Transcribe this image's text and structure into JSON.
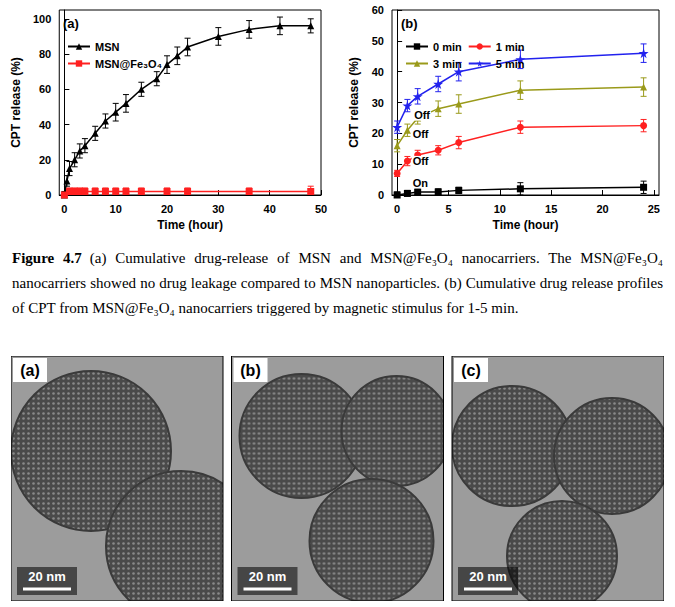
{
  "chart_data": [
    {
      "type": "line",
      "panel": "(a)",
      "x_label": "Time (hour)",
      "y_label": "CPT release (%)",
      "xlim": [
        -1,
        50
      ],
      "xticks": [
        0,
        10,
        20,
        30,
        40,
        50
      ],
      "ylim": [
        0,
        105
      ],
      "yticks": [
        0,
        20,
        40,
        60,
        80,
        100
      ],
      "legend": "top-left",
      "series": [
        {
          "name": "MSN",
          "color": "#000000",
          "marker": "triangle",
          "x": [
            0,
            0.5,
            1,
            2,
            3,
            4,
            6,
            8,
            10,
            12,
            15,
            18,
            20,
            22,
            24,
            30,
            36,
            42,
            48
          ],
          "values": [
            0,
            8,
            15,
            20,
            25,
            28,
            35,
            42,
            47,
            52,
            60,
            66,
            74,
            79,
            84,
            90,
            94,
            96,
            96
          ],
          "errors": [
            2,
            3,
            4,
            4,
            4,
            4,
            4,
            4,
            5,
            5,
            4,
            4,
            5,
            5,
            5,
            5,
            5,
            5,
            4
          ]
        },
        {
          "name": "MSN@Fe₃O₄",
          "color": "#ff2020",
          "marker": "square",
          "x": [
            0,
            1,
            2,
            3,
            4,
            6,
            8,
            10,
            12,
            15,
            20,
            24,
            36,
            48
          ],
          "values": [
            0,
            2,
            2,
            2,
            2,
            2,
            2,
            2,
            2,
            2,
            2,
            2,
            2,
            2
          ],
          "errors": [
            1,
            2,
            2,
            2,
            2,
            2,
            2,
            2,
            2,
            2,
            2,
            2,
            2,
            3
          ]
        }
      ]
    },
    {
      "type": "line",
      "panel": "(b)",
      "x_label": "Time (hour)",
      "y_label": "CPT release (%)",
      "xlim": [
        -0.5,
        25.5
      ],
      "xticks": [
        0,
        5,
        10,
        15,
        20,
        25
      ],
      "ylim": [
        0,
        60
      ],
      "yticks": [
        0,
        10,
        20,
        30,
        40,
        50,
        60
      ],
      "legend": "top-left",
      "series": [
        {
          "name": "0 min",
          "color": "#000000",
          "marker": "square",
          "annotation": "On",
          "x": [
            0,
            1,
            2,
            4,
            6,
            12,
            24
          ],
          "values": [
            0,
            0.5,
            1,
            1,
            1.5,
            2,
            2.5
          ],
          "errors": [
            1,
            1,
            1,
            1,
            1,
            2,
            2
          ]
        },
        {
          "name": "1 min",
          "color": "#ff2020",
          "marker": "circle",
          "annotation": "Off",
          "x": [
            0,
            1,
            2,
            4,
            6,
            12,
            24
          ],
          "values": [
            7,
            11,
            13,
            14.5,
            17,
            22,
            22.5
          ],
          "errors": [
            1,
            1.5,
            1.5,
            1.5,
            2,
            2,
            2
          ]
        },
        {
          "name": "3 min",
          "color": "#9a9a1a",
          "marker": "triangle",
          "annotation": "Off",
          "x": [
            0,
            1,
            2,
            4,
            6,
            12,
            24
          ],
          "values": [
            16,
            21,
            25,
            28,
            29.5,
            34,
            35
          ],
          "errors": [
            2,
            2,
            2,
            2.5,
            3,
            3,
            3
          ]
        },
        {
          "name": "5 min",
          "color": "#2222ee",
          "marker": "star",
          "annotation": "Off",
          "x": [
            0,
            1,
            2,
            4,
            6,
            12,
            24
          ],
          "values": [
            22,
            29,
            32,
            36,
            40,
            44,
            46
          ],
          "errors": [
            2,
            2,
            2.5,
            2.5,
            3,
            3,
            3
          ]
        }
      ]
    }
  ],
  "caption": {
    "label": "Figure 4.7",
    "text": "(a) Cumulative drug-release of MSN and MSN@Fe₃O₄ nanocarriers. The MSN@Fe₃O₄ nanocarriers showed no drug leakage compared to MSN nanoparticles. (b) Cumulative drug release profiles of CPT from MSN@Fe₃O₄ nanocarriers triggered by magnetic stimulus for 1-5 min."
  },
  "images": [
    {
      "label": "(a)",
      "scale_bar": "20 nm"
    },
    {
      "label": "(b)",
      "scale_bar": "20 nm"
    },
    {
      "label": "(c)",
      "scale_bar": "20 nm"
    }
  ]
}
